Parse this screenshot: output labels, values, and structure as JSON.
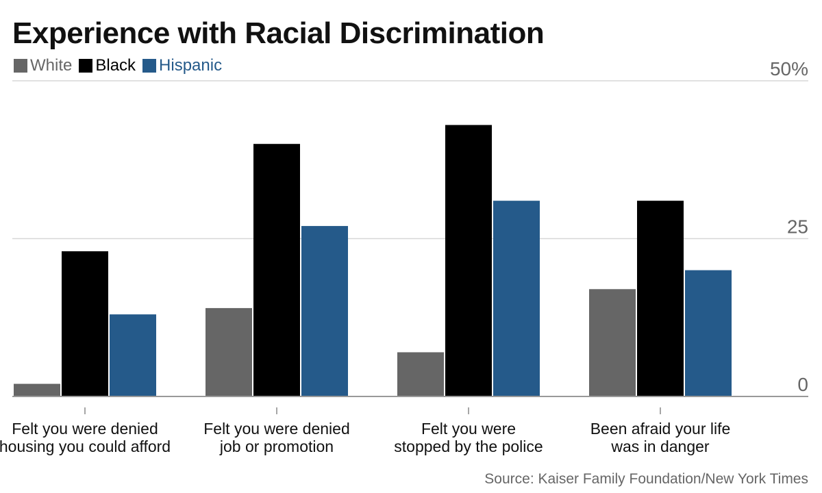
{
  "title": "Experience with Racial Discrimination",
  "legend": [
    {
      "label": "White",
      "color": "#666666"
    },
    {
      "label": "Black",
      "color": "#000000"
    },
    {
      "label": "Hispanic",
      "color": "#255a8a"
    }
  ],
  "source": "Source: Kaiser Family Foundation/New York Times",
  "chart_data": {
    "type": "bar",
    "categories": [
      [
        "Felt you were denied",
        "housing you could afford"
      ],
      [
        "Felt you were denied",
        "job or promotion"
      ],
      [
        "Felt you were",
        "stopped by the police"
      ],
      [
        "Been afraid your life",
        "was in danger"
      ]
    ],
    "series": [
      {
        "name": "White",
        "color": "#666666",
        "values": [
          2,
          14,
          7,
          17
        ]
      },
      {
        "name": "Black",
        "color": "#000000",
        "values": [
          23,
          40,
          43,
          31
        ]
      },
      {
        "name": "Hispanic",
        "color": "#255a8a",
        "values": [
          13,
          27,
          31,
          20
        ]
      }
    ],
    "ylim": [
      0,
      50
    ],
    "yticks": [
      {
        "value": 0,
        "label": "0"
      },
      {
        "value": 25,
        "label": "25"
      },
      {
        "value": 50,
        "label": "50%"
      }
    ],
    "grid": true,
    "legend_position": "top-left",
    "xlabel": "",
    "ylabel": ""
  }
}
